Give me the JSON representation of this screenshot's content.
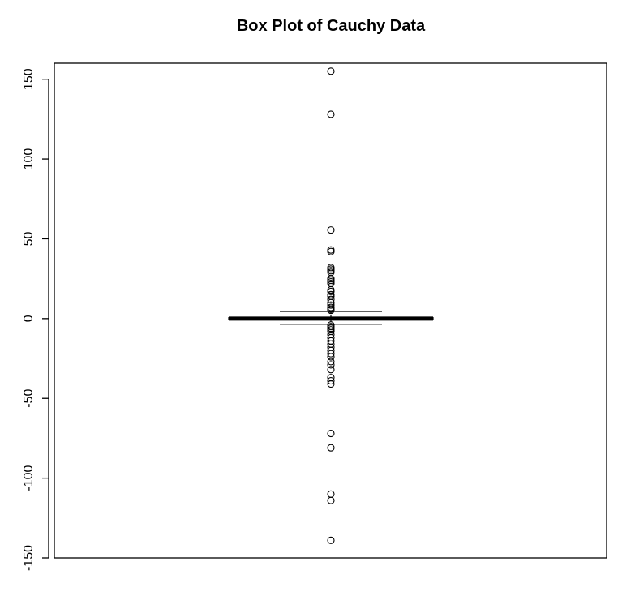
{
  "chart_data": {
    "type": "box",
    "title": "Box Plot of Cauchy Data",
    "xlabel": "",
    "ylabel": "",
    "ylim": [
      -150,
      160
    ],
    "yticks": [
      -150,
      -100,
      -50,
      0,
      50,
      100,
      150
    ],
    "ytick_labels": [
      "-150",
      "-100",
      "-50",
      "0",
      "50",
      "100",
      "150"
    ],
    "grid": false,
    "legend": "none",
    "box": {
      "median": 0,
      "q1": -0.6,
      "q3": 0.6,
      "whisker_low": -3.5,
      "whisker_high": 4.5
    },
    "outliers": [
      155,
      128,
      55.5,
      43,
      42,
      32,
      31,
      30,
      29,
      25,
      24,
      23,
      22,
      18,
      17,
      15,
      14,
      12,
      10,
      8.5,
      7,
      6,
      5.2,
      -4,
      -5,
      -6,
      -7,
      -8,
      -10,
      -12,
      -14,
      -16,
      -18,
      -20,
      -22,
      -24,
      -27,
      -29,
      -32,
      -37,
      -39,
      -41,
      -72,
      -81,
      -110,
      -114,
      -139
    ],
    "colors": {
      "points": "#000000",
      "box": "#000000",
      "axis": "#000000"
    }
  }
}
